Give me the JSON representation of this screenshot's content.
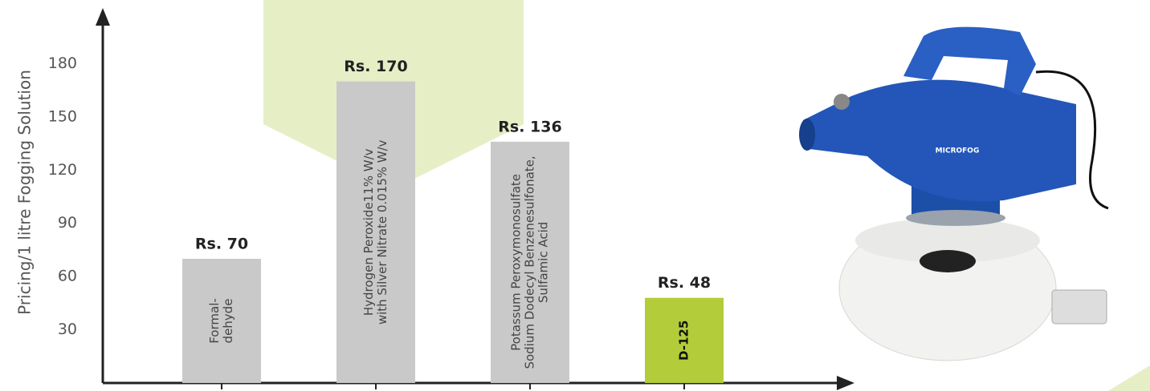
{
  "chart_data": {
    "type": "bar",
    "y_label": "Pricing/1 litre Fogging Solution",
    "categories": [
      [
        "Formal-",
        "dehyde"
      ],
      [
        "Hydrogen Peroxide11% W/v",
        "with Silver Nitrate 0.015% W/v"
      ],
      [
        "Potassum Peroxymonosulfate",
        "Sodium Dodecyl Benzenesulfonate,",
        "Sulfamic Acid"
      ],
      [
        "D-125"
      ]
    ],
    "values": [
      70,
      170,
      136,
      48
    ],
    "value_labels": [
      "Rs. 70",
      "Rs. 170",
      "Rs. 136",
      "Rs. 48"
    ],
    "colors": [
      "#c9c9c9",
      "#c9c9c9",
      "#c9c9c9",
      "#b3cc3a"
    ],
    "ylim": [
      0,
      210
    ],
    "yticks": [
      30,
      60,
      90,
      120,
      150,
      180
    ],
    "grid": false,
    "annotations": [
      "MICROFOG"
    ]
  }
}
